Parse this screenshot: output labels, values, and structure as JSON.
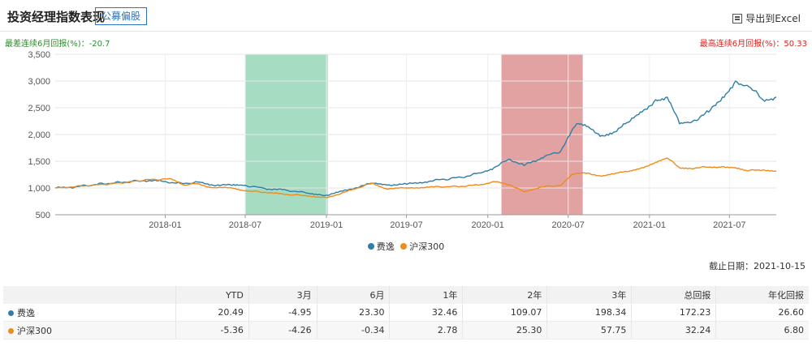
{
  "header": {
    "title": "投资经理指数表现",
    "tag": "公募偏股",
    "export_label": "导出到Excel"
  },
  "stats": {
    "worst": "最差连续6月回报(%)：-20.7",
    "best": "最高连续6月回报(%)：50.33"
  },
  "deadline": "截止日期：2021-10-15",
  "colors": {
    "series1": "#2f7ea6",
    "series2": "#f08a1c",
    "green_band": "#a6dcc1",
    "red_band": "#e2a2a1"
  },
  "chart_data": {
    "type": "line",
    "x_range": [
      "2017-04-27",
      "2021-10-15"
    ],
    "ylim": [
      500,
      3500
    ],
    "yticks": [
      "500",
      "1,000",
      "1,500",
      "2,000",
      "2,500",
      "3,000",
      "3,500"
    ],
    "xticks": [
      "2018-01",
      "2018-07",
      "2019-01",
      "2019-07",
      "2020-01",
      "2020-07",
      "2021-01",
      "2021-07"
    ],
    "grid": true,
    "legend_position": "bottom",
    "bands": [
      {
        "start": "2018-07-01",
        "end": "2019-01-04",
        "color": "#a6dcc1"
      },
      {
        "start": "2020-02-01",
        "end": "2020-08-03",
        "color": "#e2a2a1"
      }
    ],
    "series": [
      {
        "name": "费逸",
        "color": "#2f7ea6",
        "points": [
          [
            "2017-04-27",
            1000
          ],
          [
            "2017-06-01",
            1010
          ],
          [
            "2017-08-01",
            1070
          ],
          [
            "2017-10-01",
            1110
          ],
          [
            "2017-11-15",
            1140
          ],
          [
            "2018-01-01",
            1120
          ],
          [
            "2018-02-10",
            1080
          ],
          [
            "2018-03-15",
            1110
          ],
          [
            "2018-04-15",
            1060
          ],
          [
            "2018-06-01",
            1050
          ],
          [
            "2018-07-01",
            1050
          ],
          [
            "2018-08-15",
            990
          ],
          [
            "2018-10-01",
            960
          ],
          [
            "2018-11-15",
            910
          ],
          [
            "2018-12-15",
            880
          ],
          [
            "2019-01-04",
            860
          ],
          [
            "2019-02-15",
            960
          ],
          [
            "2019-04-15",
            1090
          ],
          [
            "2019-05-15",
            1060
          ],
          [
            "2019-07-01",
            1070
          ],
          [
            "2019-09-01",
            1140
          ],
          [
            "2019-11-01",
            1200
          ],
          [
            "2019-12-15",
            1280
          ],
          [
            "2020-01-15",
            1380
          ],
          [
            "2020-02-20",
            1540
          ],
          [
            "2020-03-23",
            1420
          ],
          [
            "2020-05-01",
            1560
          ],
          [
            "2020-06-15",
            1700
          ],
          [
            "2020-07-20",
            2200
          ],
          [
            "2020-08-15",
            2150
          ],
          [
            "2020-09-15",
            1980
          ],
          [
            "2020-10-15",
            2050
          ],
          [
            "2020-11-15",
            2230
          ],
          [
            "2020-12-15",
            2420
          ],
          [
            "2021-01-15",
            2650
          ],
          [
            "2021-02-10",
            2700
          ],
          [
            "2021-03-10",
            2200
          ],
          [
            "2021-04-01",
            2220
          ],
          [
            "2021-05-15",
            2420
          ],
          [
            "2021-06-15",
            2700
          ],
          [
            "2021-07-15",
            3000
          ],
          [
            "2021-08-10",
            2920
          ],
          [
            "2021-09-15",
            2650
          ],
          [
            "2021-10-15",
            2700
          ]
        ]
      },
      {
        "name": "沪深300",
        "color": "#f08a1c",
        "points": [
          [
            "2017-04-27",
            1000
          ],
          [
            "2017-06-01",
            1020
          ],
          [
            "2017-08-01",
            1060
          ],
          [
            "2017-10-01",
            1100
          ],
          [
            "2017-11-15",
            1150
          ],
          [
            "2018-01-15",
            1170
          ],
          [
            "2018-02-10",
            1060
          ],
          [
            "2018-03-15",
            1080
          ],
          [
            "2018-04-15",
            1010
          ],
          [
            "2018-06-01",
            1000
          ],
          [
            "2018-07-01",
            950
          ],
          [
            "2018-08-15",
            920
          ],
          [
            "2018-10-01",
            880
          ],
          [
            "2018-11-15",
            860
          ],
          [
            "2018-12-15",
            830
          ],
          [
            "2019-01-04",
            820
          ],
          [
            "2019-02-25",
            960
          ],
          [
            "2019-04-15",
            1090
          ],
          [
            "2019-05-15",
            990
          ],
          [
            "2019-07-01",
            1000
          ],
          [
            "2019-09-01",
            1020
          ],
          [
            "2019-11-01",
            1030
          ],
          [
            "2019-12-15",
            1060
          ],
          [
            "2020-01-15",
            1120
          ],
          [
            "2020-02-20",
            1060
          ],
          [
            "2020-03-23",
            930
          ],
          [
            "2020-05-01",
            1020
          ],
          [
            "2020-06-15",
            1050
          ],
          [
            "2020-07-10",
            1260
          ],
          [
            "2020-08-15",
            1280
          ],
          [
            "2020-09-15",
            1220
          ],
          [
            "2020-10-15",
            1270
          ],
          [
            "2020-11-15",
            1310
          ],
          [
            "2020-12-15",
            1380
          ],
          [
            "2021-01-15",
            1480
          ],
          [
            "2021-02-10",
            1560
          ],
          [
            "2021-03-10",
            1380
          ],
          [
            "2021-04-01",
            1370
          ],
          [
            "2021-05-15",
            1390
          ],
          [
            "2021-06-15",
            1400
          ],
          [
            "2021-07-15",
            1380
          ],
          [
            "2021-08-10",
            1320
          ],
          [
            "2021-09-15",
            1340
          ],
          [
            "2021-10-15",
            1320
          ]
        ]
      }
    ]
  },
  "table": {
    "headers": [
      "",
      "YTD",
      "3月",
      "6月",
      "1年",
      "2年",
      "3年",
      "总回报",
      "年化回报"
    ],
    "rows": [
      {
        "name": "费逸",
        "color": "#2f7ea6",
        "values": [
          "20.49",
          "-4.95",
          "23.30",
          "32.46",
          "109.07",
          "198.34",
          "172.23",
          "26.60"
        ]
      },
      {
        "name": "沪深300",
        "color": "#f08a1c",
        "values": [
          "-5.36",
          "-4.26",
          "-0.34",
          "2.78",
          "25.30",
          "57.75",
          "32.24",
          "6.80"
        ]
      }
    ]
  }
}
